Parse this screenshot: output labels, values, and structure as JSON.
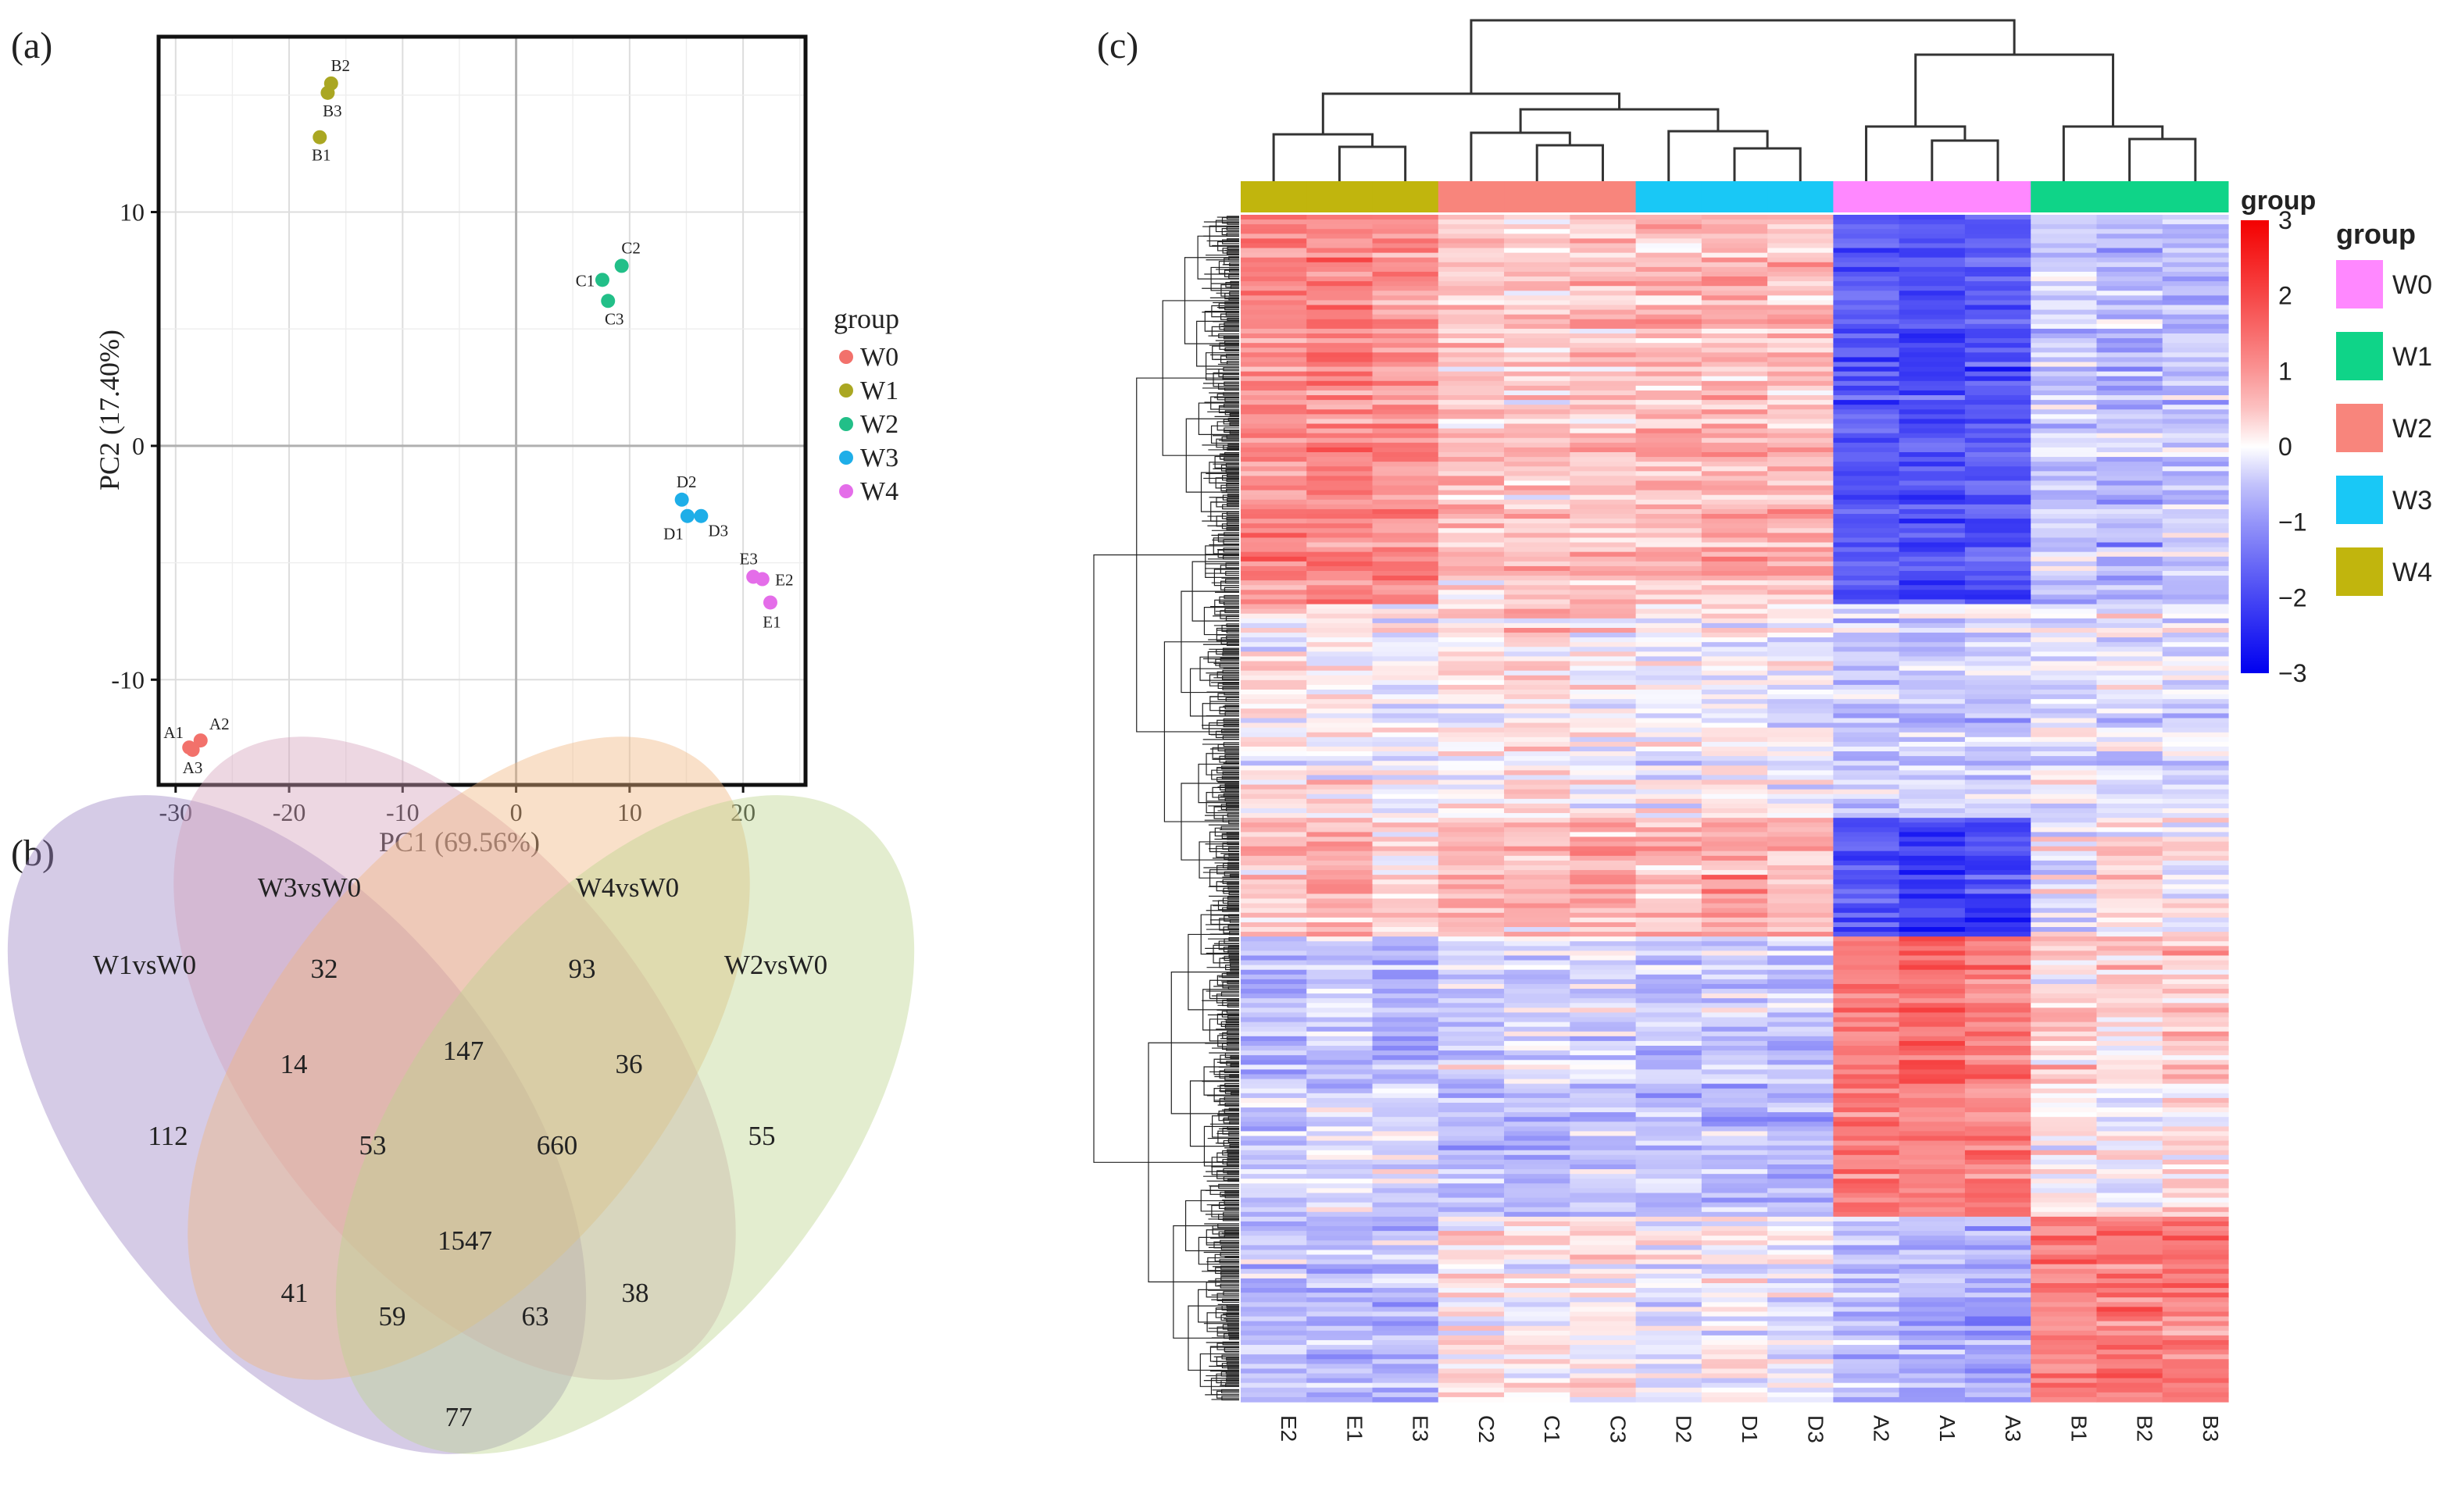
{
  "panel_labels": {
    "a": "(a)",
    "b": "(b)",
    "c": "(c)"
  },
  "colors": {
    "W0_pca": "#f2716b",
    "W1_pca": "#aaa722",
    "W2_pca": "#22bf88",
    "W3_pca": "#1eaee8",
    "W4_pca": "#e46de9",
    "W0_ann": "#ff88ff",
    "W1_ann": "#0fd488",
    "W2_ann": "#f8857c",
    "W3_ann": "#19c8f6",
    "W4_ann": "#c1b50d",
    "heat_high": "#f30000",
    "heat_mid": "#ffffff",
    "heat_low": "#0000f0"
  },
  "chart_data": [
    {
      "type": "scatter",
      "panel": "(a)",
      "xlabel": "PC1 (69.56%)",
      "ylabel": "PC2 (17.40%)",
      "xlim": [
        -31.5,
        25.5
      ],
      "ylim": [
        -14.5,
        17.5
      ],
      "xticks": [
        -30,
        -20,
        -10,
        0,
        10,
        20
      ],
      "yticks": [
        -10,
        0,
        10
      ],
      "grid": true,
      "legend_title": "group",
      "legend": [
        "W0",
        "W1",
        "W2",
        "W3",
        "W4"
      ],
      "points": [
        {
          "label": "A1",
          "group": "W0",
          "x": -28.8,
          "y": -12.9
        },
        {
          "label": "A2",
          "group": "W0",
          "x": -27.8,
          "y": -12.6
        },
        {
          "label": "A3",
          "group": "W0",
          "x": -28.5,
          "y": -13.0
        },
        {
          "label": "B1",
          "group": "W1",
          "x": -17.3,
          "y": 13.2
        },
        {
          "label": "B2",
          "group": "W1",
          "x": -16.3,
          "y": 15.5
        },
        {
          "label": "B3",
          "group": "W1",
          "x": -16.6,
          "y": 15.1
        },
        {
          "label": "C1",
          "group": "W2",
          "x": 7.6,
          "y": 7.1
        },
        {
          "label": "C2",
          "group": "W2",
          "x": 9.3,
          "y": 7.7
        },
        {
          "label": "C3",
          "group": "W2",
          "x": 8.1,
          "y": 6.2
        },
        {
          "label": "D1",
          "group": "W3",
          "x": 15.1,
          "y": -3.0
        },
        {
          "label": "D2",
          "group": "W3",
          "x": 14.6,
          "y": -2.3
        },
        {
          "label": "D3",
          "group": "W3",
          "x": 16.3,
          "y": -3.0
        },
        {
          "label": "E1",
          "group": "W4",
          "x": 22.4,
          "y": -6.7
        },
        {
          "label": "E2",
          "group": "W4",
          "x": 21.7,
          "y": -5.7
        },
        {
          "label": "E3",
          "group": "W4",
          "x": 20.9,
          "y": -5.6
        }
      ]
    },
    {
      "type": "venn",
      "panel": "(b)",
      "sets": [
        "W1vsW0",
        "W3vsW0",
        "W4vsW0",
        "W2vsW0"
      ],
      "region_counts": [
        {
          "sets": [
            "W1vsW0"
          ],
          "value": 112
        },
        {
          "sets": [
            "W3vsW0"
          ],
          "value": 32
        },
        {
          "sets": [
            "W4vsW0"
          ],
          "value": 93
        },
        {
          "sets": [
            "W2vsW0"
          ],
          "value": 55
        },
        {
          "sets": [
            "W1vsW0",
            "W3vsW0"
          ],
          "value": 14
        },
        {
          "sets": [
            "W3vsW0",
            "W4vsW0"
          ],
          "value": 147
        },
        {
          "sets": [
            "W4vsW0",
            "W2vsW0"
          ],
          "value": 36
        },
        {
          "sets": [
            "W1vsW0",
            "W3vsW0",
            "W4vsW0"
          ],
          "value": 53
        },
        {
          "sets": [
            "W3vsW0",
            "W4vsW0",
            "W2vsW0"
          ],
          "value": 660
        },
        {
          "sets": [
            "W1vsW0",
            "W3vsW0",
            "W4vsW0",
            "W2vsW0"
          ],
          "value": 1547
        },
        {
          "sets": [
            "W1vsW0",
            "W4vsW0"
          ],
          "value": 41
        },
        {
          "sets": [
            "W1vsW0",
            "W4vsW0",
            "W2vsW0"
          ],
          "value": 59
        },
        {
          "sets": [
            "W1vsW0",
            "W3vsW0",
            "W2vsW0"
          ],
          "value": 63
        },
        {
          "sets": [
            "W3vsW0",
            "W2vsW0"
          ],
          "value": 38
        },
        {
          "sets": [
            "W1vsW0",
            "W2vsW0"
          ],
          "value": 77
        }
      ]
    },
    {
      "type": "heatmap",
      "panel": "(c)",
      "columns": [
        "E2",
        "E1",
        "E3",
        "C2",
        "C1",
        "C3",
        "D2",
        "D1",
        "D3",
        "A2",
        "A1",
        "A3",
        "B1",
        "B2",
        "B3"
      ],
      "column_groups": [
        "W4",
        "W4",
        "W4",
        "W2",
        "W2",
        "W2",
        "W3",
        "W3",
        "W3",
        "W0",
        "W0",
        "W0",
        "W1",
        "W1",
        "W1"
      ],
      "row_count": 250,
      "row_blocks": [
        {
          "rows": 82,
          "means": [
            1.1,
            1.2,
            1.1,
            0.5,
            0.4,
            0.5,
            0.6,
            0.7,
            0.6,
            -1.7,
            -1.9,
            -1.8,
            -0.4,
            -0.6,
            -0.5
          ]
        },
        {
          "rows": 45,
          "means": [
            0.1,
            0.1,
            0.0,
            0.1,
            0.2,
            0.0,
            -0.1,
            0.0,
            -0.1,
            -0.4,
            -0.4,
            -0.4,
            -0.2,
            -0.2,
            -0.2
          ]
        },
        {
          "rows": 25,
          "means": [
            0.5,
            0.8,
            0.3,
            0.7,
            0.6,
            0.8,
            0.6,
            0.9,
            0.7,
            -1.8,
            -2.0,
            -1.9,
            0.0,
            0.3,
            0.1
          ]
        },
        {
          "rows": 31,
          "means": [
            -0.6,
            -0.4,
            -0.7,
            -0.4,
            -0.3,
            -0.3,
            -0.5,
            -0.4,
            -0.5,
            1.3,
            1.6,
            1.4,
            0.4,
            0.3,
            0.5
          ]
        },
        {
          "rows": 28,
          "means": [
            -0.4,
            -0.3,
            -0.3,
            -0.6,
            -0.7,
            -0.5,
            -0.5,
            -0.6,
            -0.7,
            1.4,
            1.2,
            1.3,
            0.1,
            0.0,
            0.2
          ]
        },
        {
          "rows": 39,
          "means": [
            -0.5,
            -0.6,
            -0.7,
            0.2,
            0.1,
            0.1,
            -0.1,
            0.0,
            -0.1,
            -0.6,
            -0.7,
            -0.8,
            1.2,
            1.4,
            1.3
          ]
        }
      ],
      "group_annotation_title": "group",
      "annotation_legend_title": "group",
      "annotation_legend": [
        "W0",
        "W1",
        "W2",
        "W3",
        "W4"
      ],
      "colorbar": {
        "min": -3,
        "max": 3,
        "ticks": [
          "3",
          "2",
          "1",
          "0",
          "−1",
          "−2",
          "−3"
        ],
        "tick_values": [
          3,
          2,
          1,
          0,
          -1,
          -2,
          -3
        ]
      }
    }
  ]
}
